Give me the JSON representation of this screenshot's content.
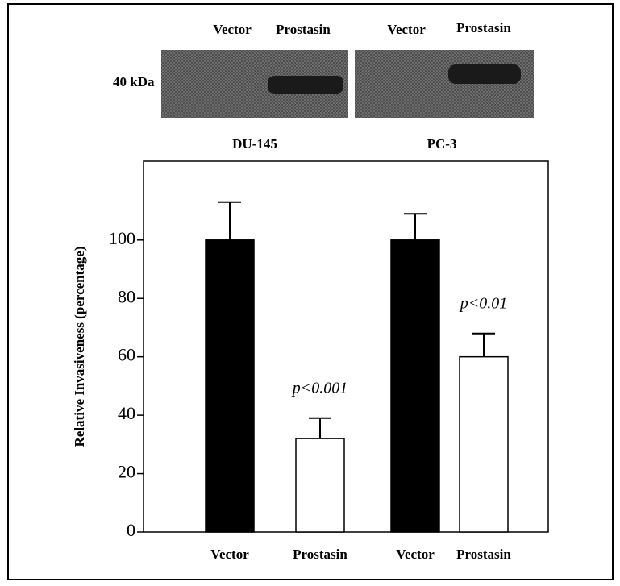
{
  "blot": {
    "marker": "40 kDa",
    "panels": [
      {
        "label": "DU-145",
        "lanes": [
          "Vector",
          "Prostasin"
        ]
      },
      {
        "label": "PC-3",
        "lanes": [
          "Vector",
          "Prostasin"
        ]
      }
    ]
  },
  "chart_data": {
    "type": "bar",
    "y_label": "Relative Invasiveness (percentage)",
    "categories": [
      "Vector",
      "Prostasin",
      "Vector",
      "Prostasin"
    ],
    "values": [
      100,
      32,
      100,
      60
    ],
    "errors": [
      13,
      7,
      9,
      8
    ],
    "colors": [
      "#000000",
      "#ffffff",
      "#000000",
      "#ffffff"
    ],
    "annotations": [
      null,
      "p<0.001",
      null,
      "p<0.01"
    ],
    "ylim": [
      0,
      127
    ],
    "yticks": [
      0,
      20,
      40,
      60,
      80,
      100
    ]
  }
}
